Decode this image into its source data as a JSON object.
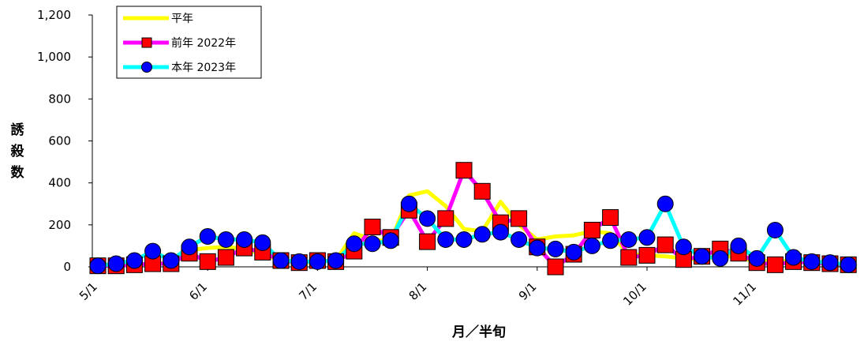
{
  "chart_data": {
    "type": "line",
    "xlabel": "月／半旬",
    "ylabel": "誘殺数",
    "ylim": [
      0,
      1200
    ],
    "yticks": [
      "0",
      "200",
      "400",
      "600",
      "800",
      "1,000",
      "1,200"
    ],
    "ytick_values": [
      0,
      200,
      400,
      600,
      800,
      1000,
      1200
    ],
    "x_tick_labels": [
      "5/1",
      "6/1",
      "7/1",
      "8/1",
      "9/1",
      "10/1",
      "11/1"
    ],
    "x_tick_indices": [
      0,
      6,
      12,
      18,
      24,
      30,
      36
    ],
    "n_points": 42,
    "grid": false,
    "legend_position": "top-left",
    "series": [
      {
        "name": "平年",
        "color": "#ffff00",
        "marker": "none",
        "values": [
          5,
          8,
          12,
          15,
          20,
          80,
          90,
          95,
          85,
          60,
          30,
          20,
          25,
          30,
          160,
          130,
          120,
          340,
          360,
          290,
          180,
          170,
          310,
          200,
          130,
          145,
          150,
          170,
          160,
          60,
          55,
          50,
          40,
          35,
          55,
          45,
          25,
          30,
          25,
          20,
          15,
          10
        ]
      },
      {
        "name": "前年 2022年",
        "color": "#ff00ff",
        "marker": "square",
        "marker_color": "#ff0000",
        "values": [
          5,
          5,
          10,
          15,
          15,
          65,
          25,
          45,
          90,
          70,
          30,
          20,
          30,
          25,
          75,
          190,
          140,
          270,
          120,
          230,
          460,
          360,
          210,
          230,
          95,
          0,
          60,
          175,
          235,
          45,
          55,
          105,
          35,
          50,
          85,
          65,
          20,
          10,
          25,
          20,
          15,
          10
        ]
      },
      {
        "name": "本年 2023年",
        "color": "#00ffff",
        "marker": "circle",
        "marker_color": "#0000ff",
        "values": [
          5,
          15,
          30,
          75,
          30,
          95,
          145,
          130,
          130,
          115,
          30,
          25,
          25,
          30,
          110,
          110,
          125,
          300,
          230,
          130,
          130,
          155,
          165,
          130,
          90,
          85,
          70,
          100,
          125,
          130,
          140,
          300,
          95,
          50,
          40,
          100,
          40,
          175,
          45,
          25,
          20,
          10
        ]
      }
    ]
  }
}
